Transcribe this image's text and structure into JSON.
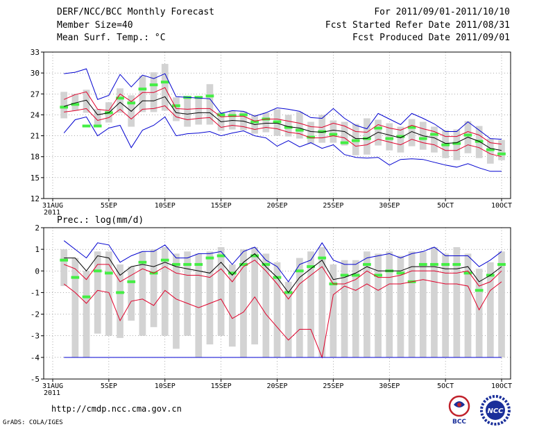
{
  "header": {
    "title": "DERF/NCC/BCC Monthly Forecast",
    "member_size": "Member Size=40",
    "variable": "Mean Surf. Temp.: °C",
    "period": "For 2011/09/01-2011/10/10",
    "start_date": "Fcst Started Refer Date 2011/08/31",
    "produced_date": "Fcst Produced Date 2011/09/01"
  },
  "footer": {
    "url": "http://cmdp.ncc.cma.gov.cn",
    "grads": "GrADS: COLA/IGES",
    "logo_left": "BCC",
    "logo_right": "NCC"
  },
  "colors": {
    "box": "#d3d3d3",
    "ensemble_mean": "#000000",
    "range_inner": "#e0002a",
    "range_outer": "#0000d0",
    "median": "#44ee44",
    "frame": "#000000"
  },
  "chart_data": [
    {
      "type": "line",
      "id": "temperature",
      "title": "",
      "ylabel": "Mean Surf. Temp.: °C",
      "ylim": [
        12,
        33
      ],
      "yticks": [
        12,
        15,
        18,
        21,
        24,
        27,
        30,
        33
      ],
      "xticks": [
        "31AUG\n2011",
        "5SEP",
        "10SEP",
        "15SEP",
        "20SEP",
        "25SEP",
        "30SEP",
        "5OCT",
        "10OCT"
      ],
      "x": [
        "08-31",
        "09-01",
        "09-02",
        "09-03",
        "09-04",
        "09-05",
        "09-06",
        "09-07",
        "09-08",
        "09-09",
        "09-10",
        "09-11",
        "09-12",
        "09-13",
        "09-14",
        "09-15",
        "09-16",
        "09-17",
        "09-18",
        "09-19",
        "09-20",
        "09-21",
        "09-22",
        "09-23",
        "09-24",
        "09-25",
        "09-26",
        "09-27",
        "09-28",
        "09-29",
        "09-30",
        "10-01",
        "10-02",
        "10-03",
        "10-04",
        "10-05",
        "10-06",
        "10-07",
        "10-08",
        "10-09",
        "10-10"
      ],
      "series": [
        {
          "name": "max",
          "color": "blue",
          "values": [
            null,
            29.9,
            30.1,
            30.6,
            26.2,
            26.8,
            29.8,
            28.0,
            29.7,
            29.2,
            29.9,
            26.6,
            26.5,
            26.4,
            26.3,
            24.2,
            24.6,
            24.5,
            23.8,
            24.3,
            25.0,
            24.8,
            24.5,
            23.6,
            23.5,
            24.9,
            23.5,
            22.5,
            22.0,
            24.2,
            23.4,
            22.6,
            24.2,
            23.5,
            22.7,
            21.6,
            21.6,
            23.0,
            21.8,
            20.6,
            20.5
          ]
        },
        {
          "name": "p90",
          "color": "red",
          "values": [
            null,
            26.2,
            26.9,
            27.3,
            24.8,
            24.6,
            27.0,
            25.9,
            27.2,
            27.2,
            27.9,
            24.9,
            24.8,
            24.9,
            24.9,
            23.7,
            23.8,
            23.8,
            23.1,
            23.4,
            23.4,
            23.1,
            22.8,
            22.3,
            22.2,
            22.8,
            22.4,
            21.6,
            21.5,
            22.6,
            22.1,
            21.8,
            22.5,
            22.0,
            21.6,
            20.9,
            20.9,
            21.6,
            21.1,
            20.0,
            19.8
          ]
        },
        {
          "name": "mean",
          "color": "black",
          "values": [
            null,
            25.2,
            25.7,
            26.1,
            24.0,
            24.3,
            25.8,
            24.5,
            26.0,
            26.0,
            26.6,
            24.3,
            24.1,
            24.3,
            24.3,
            23.0,
            23.2,
            23.1,
            22.6,
            22.8,
            22.8,
            22.3,
            22.1,
            21.6,
            21.5,
            21.8,
            21.6,
            20.6,
            20.6,
            21.5,
            21.1,
            20.7,
            21.6,
            21.0,
            20.7,
            19.9,
            20.0,
            20.8,
            20.2,
            19.2,
            18.9
          ]
        },
        {
          "name": "p10",
          "color": "red",
          "values": [
            null,
            24.4,
            24.6,
            24.9,
            23.2,
            23.6,
            24.8,
            23.4,
            24.8,
            24.9,
            25.3,
            23.7,
            23.3,
            23.5,
            23.6,
            22.2,
            22.5,
            22.3,
            21.9,
            22.2,
            22.0,
            21.5,
            21.3,
            20.7,
            20.7,
            21.0,
            20.7,
            19.5,
            19.7,
            20.5,
            20.1,
            19.7,
            20.5,
            20.0,
            19.7,
            18.9,
            18.9,
            19.7,
            19.3,
            18.4,
            18.0
          ]
        },
        {
          "name": "min",
          "color": "blue",
          "values": [
            null,
            21.4,
            23.3,
            23.7,
            21.0,
            22.1,
            22.5,
            19.3,
            21.8,
            22.5,
            23.7,
            21.0,
            21.3,
            21.4,
            21.6,
            21.0,
            21.4,
            21.7,
            21.0,
            20.7,
            19.5,
            20.3,
            19.4,
            20.0,
            19.2,
            19.7,
            18.3,
            17.9,
            17.8,
            17.9,
            16.8,
            17.6,
            17.7,
            17.6,
            17.2,
            16.8,
            16.5,
            17.0,
            16.4,
            15.9,
            15.9
          ]
        },
        {
          "name": "median",
          "color": "green",
          "values": [
            null,
            25.1,
            25.5,
            22.4,
            22.4,
            24.3,
            26.4,
            25.7,
            27.7,
            28.3,
            28.7,
            25.3,
            26.5,
            26.5,
            26.7,
            24.0,
            23.9,
            24.0,
            23.0,
            23.4,
            23.0,
            22.2,
            21.8,
            20.8,
            21.6,
            21.2,
            20.0,
            20.3,
            20.6,
            22.1,
            20.6,
            20.9,
            22.2,
            20.6,
            21.2,
            19.7,
            19.9,
            21.1,
            20.2,
            19.0,
            18.4
          ]
        }
      ],
      "boxes": {
        "low": [
          null,
          23.5,
          24.6,
          24.3,
          22.5,
          22.9,
          24.3,
          22.3,
          24.4,
          24.4,
          24.6,
          23.1,
          22.3,
          22.6,
          22.6,
          21.7,
          21.9,
          21.8,
          21.3,
          21.5,
          21.0,
          20.9,
          20.6,
          19.9,
          20.0,
          20.0,
          19.6,
          18.2,
          18.3,
          19.6,
          18.9,
          18.6,
          19.5,
          19.0,
          18.6,
          17.8,
          17.5,
          18.5,
          17.8,
          17.0,
          17.5
        ],
        "high": [
          null,
          27.3,
          27.0,
          27.6,
          24.8,
          25.8,
          27.8,
          26.8,
          29.6,
          30.1,
          31.3,
          26.5,
          26.7,
          26.5,
          28.4,
          24.4,
          24.6,
          24.5,
          24.0,
          24.3,
          24.8,
          24.0,
          24.4,
          23.0,
          24.0,
          23.2,
          23.0,
          22.7,
          23.5,
          23.3,
          22.8,
          22.3,
          23.4,
          23.0,
          22.3,
          21.8,
          21.9,
          23.1,
          22.4,
          20.6,
          20.4
        ]
      }
    },
    {
      "type": "line",
      "id": "precipitation",
      "title": "Prec.: log(mm/d)",
      "ylim": [
        -5,
        2
      ],
      "yticks": [
        -5,
        -4,
        -3,
        -2,
        -1,
        0,
        1,
        2
      ],
      "xticks": [
        "31AUG\n2011",
        "5SEP",
        "10SEP",
        "15SEP",
        "20SEP",
        "25SEP",
        "30SEP",
        "5OCT",
        "10OCT"
      ],
      "x": [
        "08-31",
        "09-01",
        "09-02",
        "09-03",
        "09-04",
        "09-05",
        "09-06",
        "09-07",
        "09-08",
        "09-09",
        "09-10",
        "09-11",
        "09-12",
        "09-13",
        "09-14",
        "09-15",
        "09-16",
        "09-17",
        "09-18",
        "09-19",
        "09-20",
        "09-21",
        "09-22",
        "09-23",
        "09-24",
        "09-25",
        "09-26",
        "09-27",
        "09-28",
        "09-29",
        "09-30",
        "10-01",
        "10-02",
        "10-03",
        "10-04",
        "10-05",
        "10-06",
        "10-07",
        "10-08",
        "10-09",
        "10-10"
      ],
      "series": [
        {
          "name": "max",
          "color": "blue",
          "values": [
            null,
            1.4,
            1.0,
            0.6,
            1.3,
            1.2,
            0.4,
            0.7,
            0.9,
            0.9,
            1.2,
            0.6,
            0.6,
            0.8,
            0.8,
            0.9,
            0.3,
            0.9,
            1.1,
            0.5,
            0.2,
            -0.5,
            0.3,
            0.5,
            1.3,
            0.5,
            0.3,
            0.3,
            0.6,
            0.7,
            0.8,
            0.6,
            0.8,
            0.9,
            1.1,
            0.7,
            0.7,
            0.7,
            0.2,
            0.5,
            0.9
          ]
        },
        {
          "name": "p90",
          "color": "black",
          "values": [
            null,
            0.6,
            0.6,
            0.0,
            0.7,
            0.6,
            -0.2,
            0.2,
            0.3,
            0.2,
            0.4,
            0.2,
            0.1,
            0.0,
            -0.1,
            0.4,
            -0.2,
            0.4,
            0.8,
            0.2,
            -0.3,
            -1.0,
            -0.3,
            0.1,
            0.5,
            -0.4,
            -0.3,
            -0.1,
            0.2,
            0.0,
            0.0,
            0.0,
            0.2,
            0.2,
            0.2,
            0.1,
            0.1,
            0.2,
            -0.5,
            -0.2,
            0.2
          ]
        },
        {
          "name": "mean",
          "color": "red",
          "values": [
            null,
            0.3,
            0.1,
            -0.4,
            0.3,
            0.3,
            -0.5,
            -0.2,
            0.1,
            -0.1,
            0.2,
            -0.1,
            -0.2,
            -0.2,
            -0.3,
            0.1,
            -0.5,
            0.2,
            0.5,
            0.0,
            -0.6,
            -1.3,
            -0.6,
            -0.2,
            0.2,
            -0.6,
            -0.6,
            -0.4,
            0.0,
            -0.3,
            -0.3,
            -0.2,
            0.0,
            0.0,
            0.0,
            -0.1,
            -0.1,
            0.0,
            -0.7,
            -0.5,
            0.0
          ]
        },
        {
          "name": "p10",
          "color": "red",
          "values": [
            null,
            -0.6,
            -1.0,
            -1.5,
            -0.9,
            -1.0,
            -2.3,
            -1.4,
            -1.3,
            -1.6,
            -0.9,
            -1.3,
            -1.5,
            -1.7,
            -1.5,
            -1.3,
            -2.2,
            -1.9,
            -1.2,
            -2.0,
            -2.6,
            -3.2,
            -2.7,
            -2.7,
            -4.0,
            -1.1,
            -0.7,
            -0.9,
            -0.6,
            -0.9,
            -0.6,
            -0.6,
            -0.5,
            -0.4,
            -0.5,
            -0.6,
            -0.6,
            -0.7,
            -1.8,
            -0.9,
            -0.5
          ]
        },
        {
          "name": "min",
          "color": "blue",
          "values": [
            null,
            -4.0,
            -4.0,
            -4.0,
            -4.0,
            -4.0,
            -4.0,
            -4.0,
            -4.0,
            -4.0,
            -4.0,
            -4.0,
            -4.0,
            -4.0,
            -4.0,
            -4.0,
            -4.0,
            -4.0,
            -4.0,
            -4.0,
            -4.0,
            -4.0,
            -4.0,
            -4.0,
            -4.0,
            -4.0,
            -4.0,
            -4.0,
            -4.0,
            -4.0,
            -4.0,
            -4.0,
            -4.0,
            -4.0,
            -4.0,
            -4.0,
            -4.0,
            -4.0,
            -4.0,
            -4.0,
            -4.0
          ]
        },
        {
          "name": "median",
          "color": "green",
          "values": [
            null,
            0.5,
            -0.3,
            -1.2,
            0.0,
            -0.1,
            -1.0,
            -0.5,
            0.4,
            -0.1,
            0.5,
            0.3,
            0.3,
            0.3,
            0.6,
            0.7,
            -0.1,
            0.3,
            0.7,
            0.3,
            -0.3,
            -1.0,
            0.0,
            0.2,
            0.6,
            -0.6,
            -0.2,
            -0.2,
            0.3,
            -0.2,
            0.0,
            -0.1,
            -0.5,
            0.3,
            0.3,
            0.3,
            0.3,
            -0.1,
            -0.9,
            -0.2,
            0.3
          ]
        }
      ],
      "boxes": {
        "low": [
          null,
          -0.7,
          -4.0,
          -4.0,
          -2.9,
          -3.0,
          -3.1,
          -2.3,
          -3.0,
          -2.6,
          -3.0,
          -3.6,
          -3.0,
          -4.0,
          -3.4,
          -3.0,
          -3.5,
          -4.0,
          -3.4,
          -4.0,
          -4.0,
          -4.0,
          -4.0,
          -4.0,
          -4.0,
          -4.0,
          -4.0,
          -4.0,
          -4.0,
          -4.0,
          -4.0,
          -4.0,
          -4.0,
          -4.0,
          -4.0,
          -4.0,
          -4.0,
          -4.0,
          -4.0,
          -4.0,
          -4.0
        ],
        "high": [
          null,
          1.0,
          0.6,
          0.0,
          0.9,
          0.9,
          0.3,
          0.2,
          0.9,
          1.0,
          1.1,
          0.8,
          0.9,
          0.8,
          0.9,
          1.1,
          0.3,
          1.0,
          1.1,
          0.8,
          0.4,
          -0.5,
          0.6,
          0.9,
          1.1,
          0.3,
          0.5,
          0.5,
          0.9,
          0.8,
          0.9,
          0.7,
          0.9,
          0.9,
          1.1,
          0.8,
          1.1,
          0.8,
          0.1,
          0.4,
          0.9
        ]
      }
    }
  ]
}
